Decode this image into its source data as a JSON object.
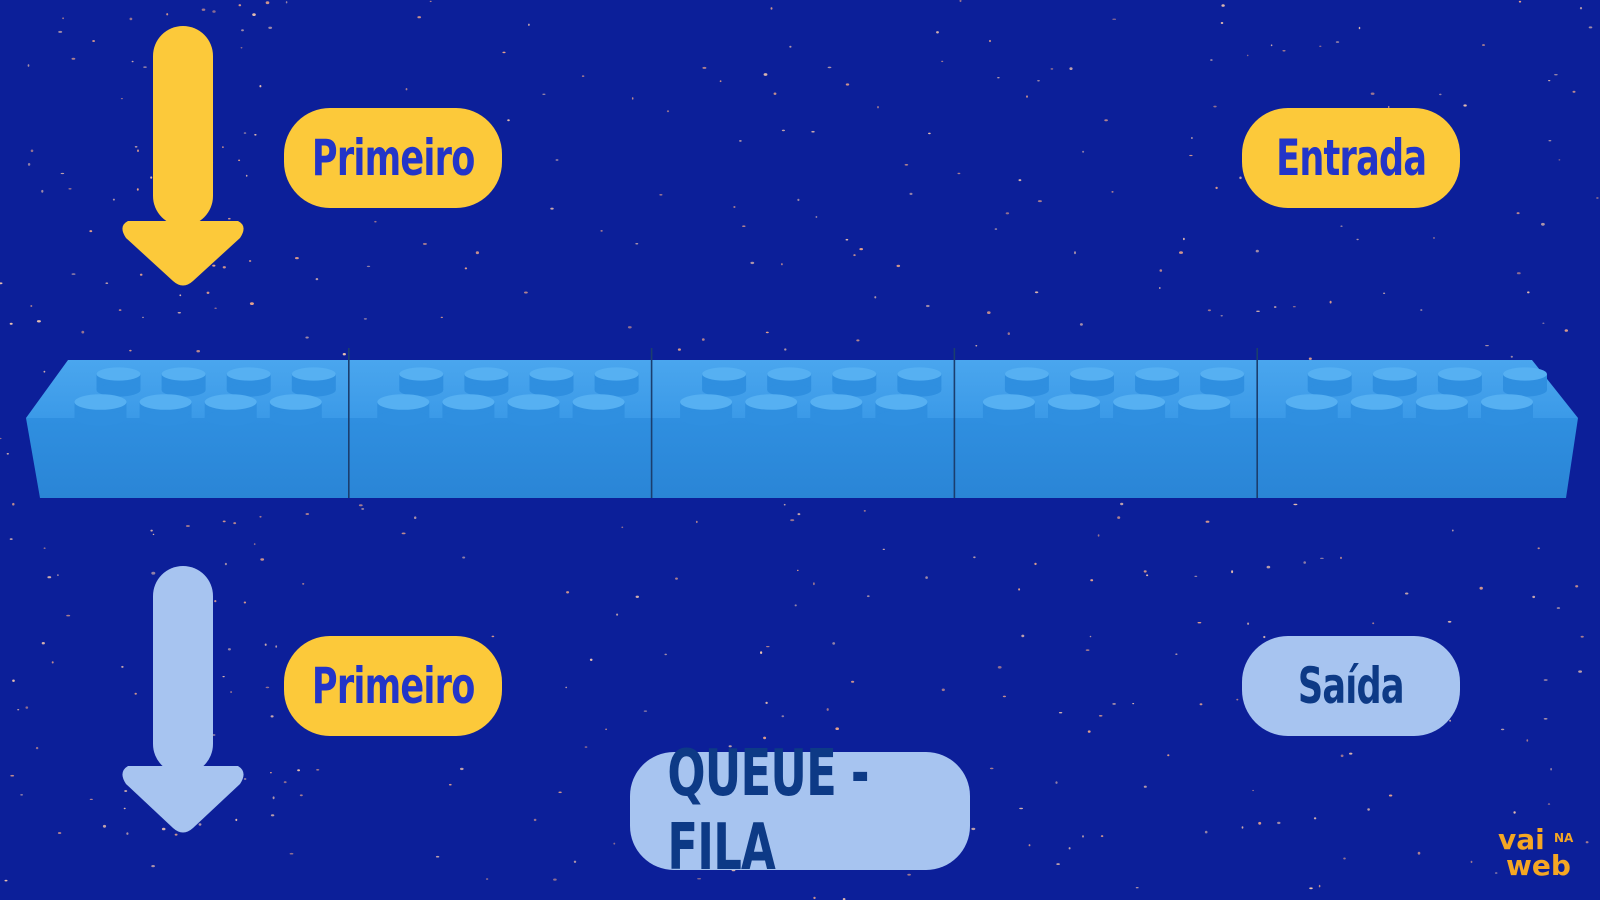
{
  "labels": {
    "first_top": "Primeiro",
    "entry": "Entrada",
    "first_bottom": "Primeiro",
    "exit": "Saída",
    "title": "QUEUE - FILA"
  },
  "logo": {
    "line1": "vai",
    "line2": "NA",
    "line3": "web"
  },
  "bricks": {
    "count": 5,
    "studs_per_row": 4
  },
  "colors": {
    "background": "#0c1f99",
    "yellow": "#fcc93a",
    "light_blue": "#a7c4f0",
    "brick": "#3a9ae6",
    "logo": "#f5a623"
  }
}
